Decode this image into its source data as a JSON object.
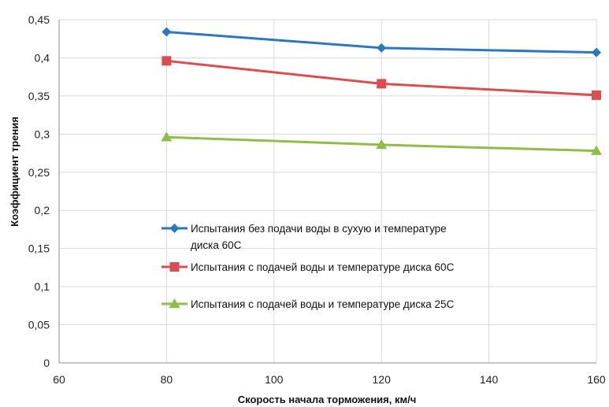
{
  "chart_data": {
    "type": "line",
    "title": "",
    "xlabel": "Скорость начала торможения, км/ч",
    "ylabel": "Коэффициент трения",
    "xlim": [
      60,
      160
    ],
    "ylim": [
      0,
      0.45
    ],
    "x_ticks": [
      60,
      80,
      100,
      120,
      140,
      160
    ],
    "x_tick_labels": [
      "60",
      "80",
      "100",
      "120",
      "140",
      "160"
    ],
    "y_ticks": [
      0,
      0.05,
      0.1,
      0.15,
      0.2,
      0.25,
      0.3,
      0.35,
      0.4,
      0.45
    ],
    "y_tick_labels": [
      "0",
      "0,05",
      "0,1",
      "0,15",
      "0,2",
      "0,25",
      "0,3",
      "0,35",
      "0,4",
      "0,45"
    ],
    "grid": true,
    "legend_position": "inside-center-left",
    "x": [
      80,
      120,
      160
    ],
    "series": [
      {
        "name": "Испытания без подачи воды в сухую и температуре диска 60С",
        "name_lines": [
          "Испытания без подачи воды в сухую и температуре",
          "диска 60С"
        ],
        "values": [
          0.434,
          0.413,
          0.407
        ],
        "color": "#2a78c3",
        "marker": "diamond"
      },
      {
        "name": "Испытания с подачей воды и температуре диска 60С",
        "name_lines": [
          "Испытания с подачей воды и температуре диска 60С"
        ],
        "values": [
          0.396,
          0.366,
          0.351
        ],
        "color": "#dc4d4d",
        "marker": "square"
      },
      {
        "name": "Испытания с подачей воды и температуре диска 25С",
        "name_lines": [
          "Испытания с подачей воды и температуре диска 25С"
        ],
        "values": [
          0.296,
          0.286,
          0.278
        ],
        "color": "#8fbe45",
        "marker": "triangle"
      }
    ]
  }
}
